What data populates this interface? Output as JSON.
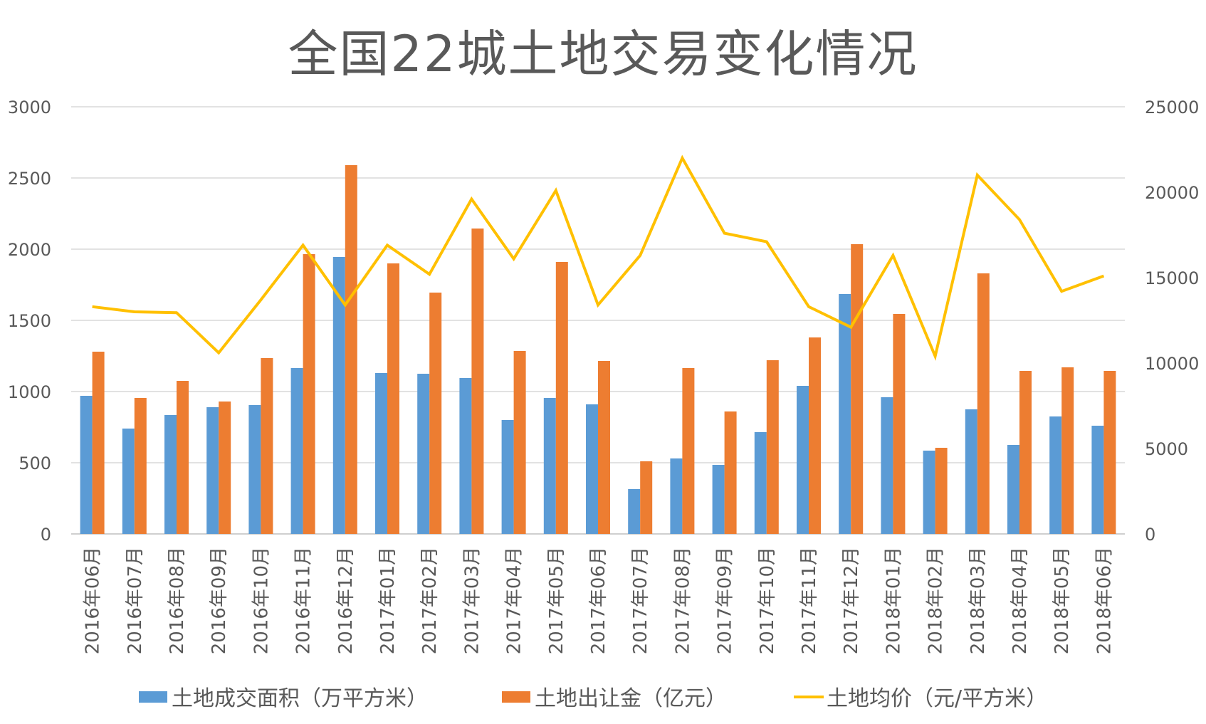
{
  "chart_data": {
    "type": "bar",
    "title": "全国22城土地交易变化情况",
    "categories": [
      "2016年06月",
      "2016年07月",
      "2016年08月",
      "2016年09月",
      "2016年10月",
      "2016年11月",
      "2016年12月",
      "2017年01月",
      "2017年02月",
      "2017年03月",
      "2017年04月",
      "2017年05月",
      "2017年06月",
      "2017年07月",
      "2017年08月",
      "2017年09月",
      "2017年10月",
      "2017年11月",
      "2017年12月",
      "2018年01月",
      "2018年02月",
      "2018年03月",
      "2018年04月",
      "2018年05月",
      "2018年06月"
    ],
    "y_left": {
      "min": 0,
      "max": 3000,
      "ticks": [
        "0",
        "500",
        "1000",
        "1500",
        "2000",
        "2500",
        "3000"
      ]
    },
    "y_right": {
      "min": 0,
      "max": 25000,
      "ticks": [
        "0",
        "5000",
        "10000",
        "15000",
        "20000",
        "25000"
      ]
    },
    "grid": true,
    "legend_position": "bottom",
    "series": [
      {
        "name": "土地成交面积（万平方米）",
        "type": "bar",
        "axis": "left",
        "color": "#5b9bd5",
        "values": [
          970,
          740,
          835,
          890,
          905,
          1165,
          1945,
          1130,
          1125,
          1095,
          800,
          955,
          910,
          315,
          530,
          485,
          715,
          1040,
          1685,
          960,
          585,
          875,
          625,
          825,
          760
        ]
      },
      {
        "name": "土地出让金（亿元）",
        "type": "bar",
        "axis": "left",
        "color": "#ed7d31",
        "values": [
          1280,
          955,
          1075,
          930,
          1235,
          1965,
          2590,
          1900,
          1695,
          2145,
          1285,
          1910,
          1215,
          510,
          1165,
          860,
          1220,
          1380,
          2035,
          1545,
          605,
          1830,
          1145,
          1170,
          1145
        ]
      },
      {
        "name": "土地均价（元/平方米）",
        "type": "line",
        "axis": "right",
        "color": "#ffc000",
        "values": [
          13300,
          13000,
          12950,
          10600,
          13700,
          16900,
          13400,
          16900,
          15200,
          19600,
          16100,
          20100,
          13400,
          16300,
          22000,
          17600,
          17100,
          13300,
          12100,
          16300,
          10400,
          21000,
          18400,
          14200,
          15100
        ]
      }
    ]
  }
}
